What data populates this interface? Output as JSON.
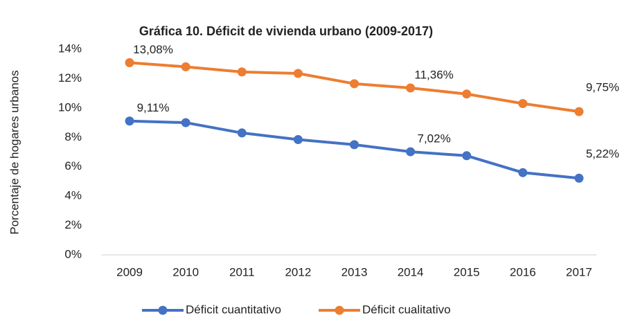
{
  "chart_data": {
    "type": "line",
    "title": "Gráfica 10.  Déficit de vivienda urbano (2009-2017)",
    "y_label": "Porcentaje de hogares urbanos",
    "categories": [
      "2009",
      "2010",
      "2011",
      "2012",
      "2013",
      "2014",
      "2015",
      "2016",
      "2017"
    ],
    "series": [
      {
        "name": "Déficit cuantitativo",
        "color": "#4472c4",
        "values": [
          9.11,
          9.0,
          8.3,
          7.85,
          7.5,
          7.02,
          6.75,
          5.6,
          5.22
        ],
        "value_labels": [
          "9,11%",
          null,
          null,
          null,
          null,
          "7,02%",
          null,
          null,
          "5,22%"
        ]
      },
      {
        "name": "Déficit cualitativo",
        "color": "#ed7d31",
        "values": [
          13.08,
          12.8,
          12.45,
          12.35,
          11.65,
          11.36,
          10.95,
          10.3,
          9.75
        ],
        "value_labels": [
          "13,08%",
          null,
          null,
          null,
          null,
          "11,36%",
          null,
          null,
          "9,75%"
        ]
      }
    ],
    "ylim": [
      0,
      14
    ],
    "yticks": [
      {
        "value": 0,
        "label": "0%"
      },
      {
        "value": 2,
        "label": "2%"
      },
      {
        "value": 4,
        "label": "4%"
      },
      {
        "value": 6,
        "label": "6%"
      },
      {
        "value": 8,
        "label": "8%"
      },
      {
        "value": 10,
        "label": "10%"
      },
      {
        "value": 12,
        "label": "12%"
      },
      {
        "value": 14,
        "label": "14%"
      }
    ],
    "legend": "bottom"
  }
}
